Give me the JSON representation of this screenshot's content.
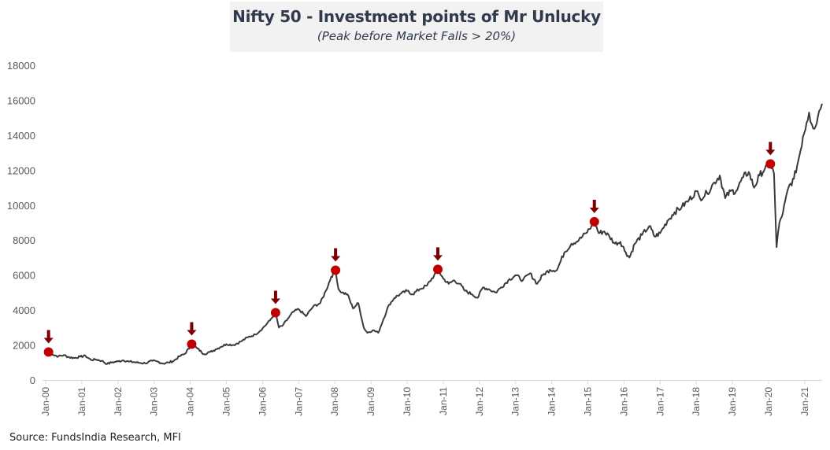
{
  "chart_data": {
    "type": "line",
    "title": "Nifty 50 - Investment points of Mr Unlucky",
    "subtitle": "(Peak before Market Falls > 20%)",
    "xlabel": "",
    "ylabel": "",
    "ylim": [
      0,
      18000
    ],
    "yticks": [
      0,
      2000,
      4000,
      6000,
      8000,
      10000,
      12000,
      14000,
      16000,
      18000
    ],
    "xlim": [
      2000.0,
      2021.5
    ],
    "xticks": [
      {
        "x": 2000,
        "label": "Jan-00"
      },
      {
        "x": 2001,
        "label": "Jan-01"
      },
      {
        "x": 2002,
        "label": "Jan-02"
      },
      {
        "x": 2003,
        "label": "Jan-03"
      },
      {
        "x": 2004,
        "label": "Jan-04"
      },
      {
        "x": 2005,
        "label": "Jan-05"
      },
      {
        "x": 2006,
        "label": "Jan-06"
      },
      {
        "x": 2007,
        "label": "Jan-07"
      },
      {
        "x": 2008,
        "label": "Jan-08"
      },
      {
        "x": 2009,
        "label": "Jan-09"
      },
      {
        "x": 2010,
        "label": "Jan-10"
      },
      {
        "x": 2011,
        "label": "Jan-11"
      },
      {
        "x": 2012,
        "label": "Jan-12"
      },
      {
        "x": 2013,
        "label": "Jan-13"
      },
      {
        "x": 2014,
        "label": "Jan-14"
      },
      {
        "x": 2015,
        "label": "Jan-15"
      },
      {
        "x": 2016,
        "label": "Jan-16"
      },
      {
        "x": 2017,
        "label": "Jan-17"
      },
      {
        "x": 2018,
        "label": "Jan-18"
      },
      {
        "x": 2019,
        "label": "Jan-19"
      },
      {
        "x": 2020,
        "label": "Jan-20"
      },
      {
        "x": 2021,
        "label": "Jan-21"
      }
    ],
    "grid": false,
    "series": [
      {
        "name": "Nifty 50",
        "color": "#3a3a3a",
        "points": [
          [
            2000.08,
            1600
          ],
          [
            2000.2,
            1450
          ],
          [
            2000.35,
            1350
          ],
          [
            2000.5,
            1420
          ],
          [
            2000.65,
            1300
          ],
          [
            2000.8,
            1260
          ],
          [
            2000.95,
            1330
          ],
          [
            2001.1,
            1380
          ],
          [
            2001.25,
            1150
          ],
          [
            2001.4,
            1170
          ],
          [
            2001.55,
            1100
          ],
          [
            2001.7,
            920
          ],
          [
            2001.85,
            1020
          ],
          [
            2002.0,
            1060
          ],
          [
            2002.15,
            1130
          ],
          [
            2002.3,
            1050
          ],
          [
            2002.45,
            1020
          ],
          [
            2002.6,
            980
          ],
          [
            2002.75,
            960
          ],
          [
            2002.95,
            1090
          ],
          [
            2003.1,
            1050
          ],
          [
            2003.25,
            940
          ],
          [
            2003.4,
            1000
          ],
          [
            2003.55,
            1100
          ],
          [
            2003.7,
            1350
          ],
          [
            2003.85,
            1500
          ],
          [
            2004.0,
            1900
          ],
          [
            2004.04,
            2050
          ],
          [
            2004.2,
            1800
          ],
          [
            2004.38,
            1480
          ],
          [
            2004.55,
            1600
          ],
          [
            2004.7,
            1750
          ],
          [
            2004.85,
            1900
          ],
          [
            2005.0,
            2050
          ],
          [
            2005.2,
            2000
          ],
          [
            2005.4,
            2200
          ],
          [
            2005.6,
            2450
          ],
          [
            2005.8,
            2600
          ],
          [
            2006.0,
            2950
          ],
          [
            2006.2,
            3400
          ],
          [
            2006.36,
            3850
          ],
          [
            2006.45,
            3000
          ],
          [
            2006.55,
            3100
          ],
          [
            2006.7,
            3500
          ],
          [
            2006.85,
            3900
          ],
          [
            2007.0,
            4050
          ],
          [
            2007.2,
            3650
          ],
          [
            2007.4,
            4200
          ],
          [
            2007.6,
            4400
          ],
          [
            2007.75,
            5100
          ],
          [
            2007.9,
            5900
          ],
          [
            2008.02,
            6280
          ],
          [
            2008.1,
            5200
          ],
          [
            2008.2,
            5000
          ],
          [
            2008.35,
            4900
          ],
          [
            2008.5,
            4100
          ],
          [
            2008.65,
            4400
          ],
          [
            2008.8,
            3000
          ],
          [
            2008.9,
            2700
          ],
          [
            2009.05,
            2850
          ],
          [
            2009.2,
            2700
          ],
          [
            2009.35,
            3500
          ],
          [
            2009.5,
            4300
          ],
          [
            2009.65,
            4700
          ],
          [
            2009.8,
            4900
          ],
          [
            2010.0,
            5100
          ],
          [
            2010.15,
            4900
          ],
          [
            2010.35,
            5200
          ],
          [
            2010.55,
            5400
          ],
          [
            2010.75,
            6000
          ],
          [
            2010.85,
            6330
          ],
          [
            2011.0,
            5800
          ],
          [
            2011.15,
            5500
          ],
          [
            2011.3,
            5700
          ],
          [
            2011.45,
            5500
          ],
          [
            2011.6,
            5100
          ],
          [
            2011.8,
            4900
          ],
          [
            2011.95,
            4700
          ],
          [
            2012.1,
            5300
          ],
          [
            2012.25,
            5200
          ],
          [
            2012.45,
            5000
          ],
          [
            2012.6,
            5300
          ],
          [
            2012.8,
            5700
          ],
          [
            2013.0,
            6000
          ],
          [
            2013.2,
            5700
          ],
          [
            2013.4,
            6100
          ],
          [
            2013.6,
            5500
          ],
          [
            2013.75,
            6000
          ],
          [
            2013.95,
            6300
          ],
          [
            2014.15,
            6300
          ],
          [
            2014.35,
            7300
          ],
          [
            2014.55,
            7800
          ],
          [
            2014.75,
            8000
          ],
          [
            2014.95,
            8400
          ],
          [
            2015.1,
            8800
          ],
          [
            2015.18,
            9050
          ],
          [
            2015.3,
            8400
          ],
          [
            2015.45,
            8500
          ],
          [
            2015.6,
            8200
          ],
          [
            2015.75,
            7800
          ],
          [
            2015.9,
            7900
          ],
          [
            2016.05,
            7300
          ],
          [
            2016.15,
            7000
          ],
          [
            2016.3,
            7800
          ],
          [
            2016.5,
            8300
          ],
          [
            2016.7,
            8800
          ],
          [
            2016.85,
            8200
          ],
          [
            2017.0,
            8400
          ],
          [
            2017.2,
            9100
          ],
          [
            2017.4,
            9600
          ],
          [
            2017.6,
            9900
          ],
          [
            2017.8,
            10300
          ],
          [
            2018.0,
            10800
          ],
          [
            2018.1,
            10400
          ],
          [
            2018.3,
            10700
          ],
          [
            2018.5,
            11300
          ],
          [
            2018.65,
            11700
          ],
          [
            2018.8,
            10400
          ],
          [
            2018.95,
            10800
          ],
          [
            2019.1,
            10800
          ],
          [
            2019.3,
            11600
          ],
          [
            2019.45,
            11900
          ],
          [
            2019.6,
            11000
          ],
          [
            2019.75,
            11700
          ],
          [
            2019.9,
            12100
          ],
          [
            2020.05,
            12360
          ],
          [
            2020.15,
            11800
          ],
          [
            2020.22,
            7600
          ],
          [
            2020.3,
            9000
          ],
          [
            2020.4,
            9600
          ],
          [
            2020.55,
            11000
          ],
          [
            2020.7,
            11500
          ],
          [
            2020.85,
            12800
          ],
          [
            2020.95,
            13900
          ],
          [
            2021.05,
            14700
          ],
          [
            2021.12,
            15300
          ],
          [
            2021.2,
            14600
          ],
          [
            2021.3,
            14500
          ],
          [
            2021.4,
            15400
          ],
          [
            2021.48,
            15800
          ]
        ]
      }
    ],
    "markers": {
      "name": "Peak before Market Falls > 20%",
      "color": "#c00000",
      "arrow_color": "#7b0000",
      "points": [
        [
          2000.08,
          1600
        ],
        [
          2004.04,
          2050
        ],
        [
          2006.36,
          3850
        ],
        [
          2008.02,
          6280
        ],
        [
          2010.85,
          6330
        ],
        [
          2015.18,
          9050
        ],
        [
          2020.05,
          12360
        ]
      ]
    }
  },
  "footer": {
    "source": "Source: FundsIndia Research, MFI"
  }
}
